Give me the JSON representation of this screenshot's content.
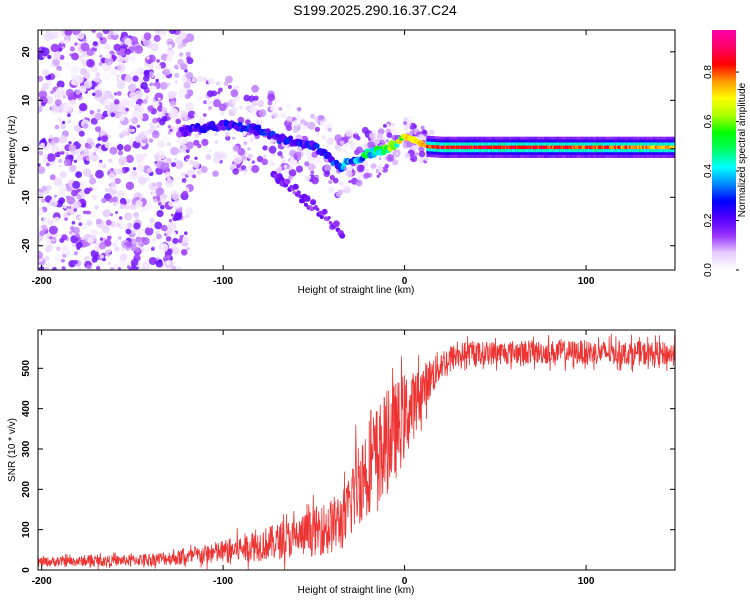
{
  "title": "S199.2025.290.16.37.C24",
  "chart_data": [
    {
      "type": "heatmap",
      "name": "spectrogram",
      "xlabel": "Height of straight line (km)",
      "ylabel": "Frequency (Hz)",
      "xlim": [
        -202,
        149
      ],
      "ylim": [
        -25,
        24.5
      ],
      "xticks": [
        -200,
        -100,
        0,
        100
      ],
      "xtick_labels": [
        "-200",
        "-100",
        "0",
        "100"
      ],
      "yticks": [
        -20,
        -10,
        0,
        10,
        20
      ],
      "ytick_labels": [
        "-20",
        "-10",
        "0",
        "10",
        "20"
      ],
      "colorbar": {
        "label": "Normalized spectral amplitude",
        "range": [
          0,
          0.97
        ],
        "ticks": [
          0.0,
          0.2,
          0.4,
          0.6,
          0.8
        ],
        "tick_labels": [
          "0.0",
          "0.2",
          "0.4",
          "0.6",
          "0.8"
        ],
        "colors": [
          "#ffffff",
          "#e6ccff",
          "#9933ff",
          "#5500ff",
          "#0000ff",
          "#0088ff",
          "#00ffff",
          "#00ff66",
          "#00ff00",
          "#aaff00",
          "#ffff00",
          "#ff9900",
          "#ff0000",
          "#ff0066",
          "#ff00aa"
        ]
      },
      "ridge": {
        "x": [
          -122,
          -110,
          -100,
          -90,
          -80,
          -70,
          -60,
          -50,
          -42,
          -36,
          -32,
          -26,
          -20,
          -14,
          -8,
          -4,
          0,
          4,
          8,
          12,
          20,
          40,
          80,
          120,
          149
        ],
        "freq": [
          3.5,
          4.5,
          5.0,
          4.5,
          3.8,
          2.2,
          1.5,
          0.5,
          -1.5,
          -3.8,
          -3.0,
          -2.2,
          -1.0,
          -0.5,
          0.2,
          1.3,
          2.5,
          2.0,
          1.3,
          0.5,
          0.3,
          0.3,
          0.3,
          0.3,
          0.3
        ],
        "amp": [
          0.2,
          0.25,
          0.28,
          0.3,
          0.3,
          0.28,
          0.28,
          0.3,
          0.32,
          0.36,
          0.4,
          0.44,
          0.5,
          0.55,
          0.6,
          0.65,
          0.7,
          0.72,
          0.75,
          0.8,
          0.85,
          0.88,
          0.85,
          0.8,
          0.75
        ]
      },
      "noise_region": [
        -202,
        -118
      ]
    },
    {
      "type": "line",
      "name": "snr",
      "xlabel": "Height of straight line (km)",
      "ylabel": "SNR (10 * v/v)",
      "xlim": [
        -202,
        149
      ],
      "ylim": [
        0,
        595
      ],
      "xticks": [
        -200,
        -100,
        0,
        100
      ],
      "xtick_labels": [
        "-200",
        "-100",
        "0",
        "100"
      ],
      "yticks": [
        0,
        100,
        200,
        300,
        400,
        500
      ],
      "ytick_labels": [
        "0",
        "100",
        "200",
        "300",
        "400",
        "500"
      ],
      "color": "#ee3333",
      "envelope": {
        "x": [
          -202,
          -150,
          -120,
          -100,
          -80,
          -60,
          -50,
          -40,
          -32,
          -28,
          -20,
          -12,
          -8,
          -4,
          0,
          4,
          10,
          20,
          30,
          60,
          100,
          149
        ],
        "mean": [
          20,
          24,
          32,
          45,
          62,
          80,
          95,
          110,
          130,
          200,
          260,
          300,
          330,
          350,
          380,
          400,
          450,
          510,
          535,
          540,
          540,
          535
        ],
        "spread": [
          12,
          14,
          20,
          30,
          40,
          50,
          60,
          70,
          80,
          110,
          120,
          130,
          130,
          120,
          110,
          90,
          60,
          40,
          30,
          30,
          30,
          30
        ]
      }
    }
  ]
}
